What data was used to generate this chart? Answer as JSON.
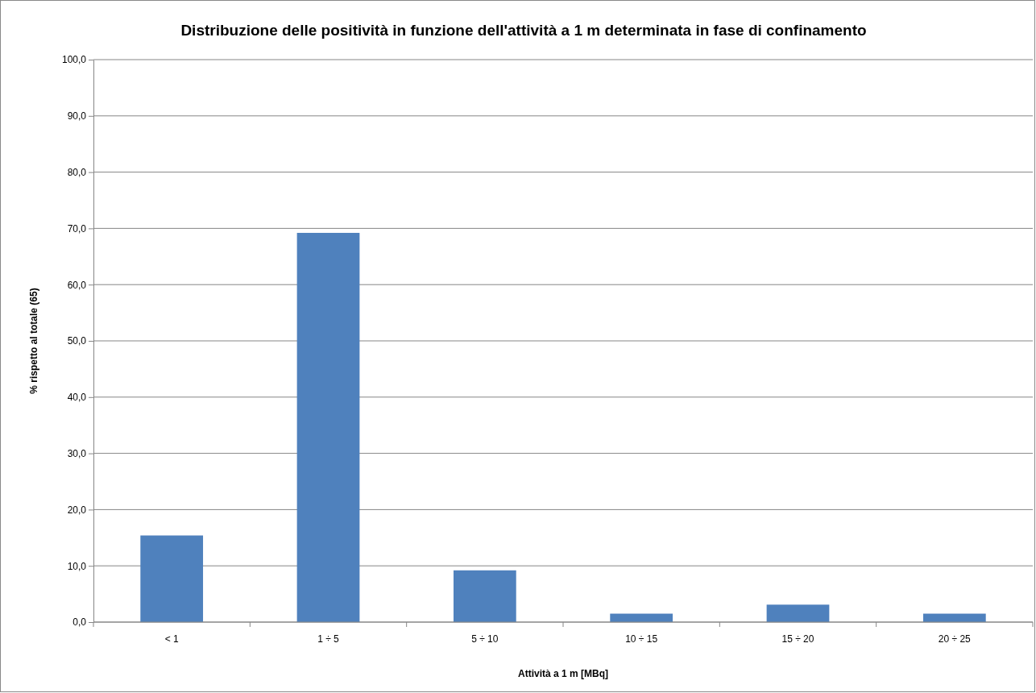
{
  "chart_data": {
    "type": "bar",
    "title": "Distribuzione delle positività in funzione dell'attività a 1 m determinata in fase di confinamento",
    "xlabel": "Attività a 1 m [MBq]",
    "ylabel": "% rispetto al totale (65)",
    "categories": [
      "< 1",
      "1 ÷ 5",
      "5 ÷ 10",
      "10 ÷ 15",
      "15 ÷ 20",
      "20 ÷ 25"
    ],
    "values": [
      15.4,
      69.2,
      9.2,
      1.5,
      3.1,
      1.5
    ],
    "color": "#4f81bd",
    "ylim": [
      0,
      100
    ],
    "yticks": [
      {
        "value": 0,
        "label": "0,0"
      },
      {
        "value": 10,
        "label": "10,0"
      },
      {
        "value": 20,
        "label": "20,0"
      },
      {
        "value": 30,
        "label": "30,0"
      },
      {
        "value": 40,
        "label": "40,0"
      },
      {
        "value": 50,
        "label": "50,0"
      },
      {
        "value": 60,
        "label": "60,0"
      },
      {
        "value": 70,
        "label": "70,0"
      },
      {
        "value": 80,
        "label": "80,0"
      },
      {
        "value": 90,
        "label": "90,0"
      },
      {
        "value": 100,
        "label": "100,0"
      }
    ],
    "grid": "y"
  }
}
